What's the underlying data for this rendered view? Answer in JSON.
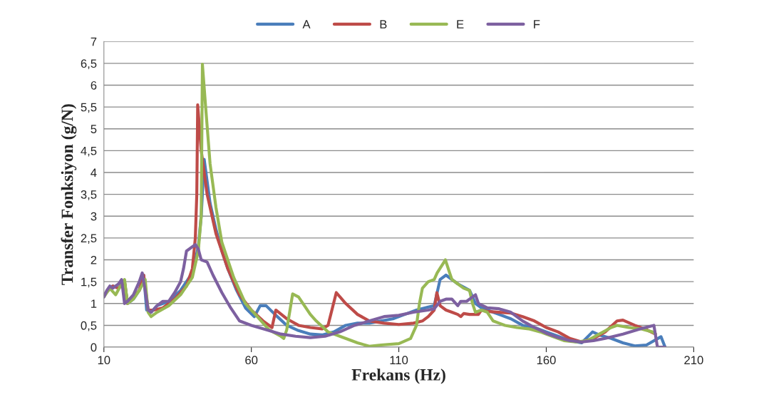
{
  "chart_data": {
    "type": "line",
    "xlabel": "Frekans (Hz)",
    "ylabel": "Transfer Fonksiyon (g/N)",
    "xlim": [
      10,
      210
    ],
    "xticks": [
      10,
      60,
      110,
      160,
      210
    ],
    "ylim": [
      0,
      7
    ],
    "yticks": [
      0,
      {
        "value": 0.5,
        "label": "0,5"
      },
      1,
      {
        "value": 1.5,
        "label": "1,5"
      },
      2,
      {
        "value": 2.5,
        "label": "2,5"
      },
      3,
      {
        "value": 3.5,
        "label": "3,5"
      },
      4,
      {
        "value": 4.5,
        "label": "4,5"
      },
      5,
      {
        "value": 5.5,
        "label": "5,5"
      },
      6,
      {
        "value": 6.5,
        "label": "6,5"
      },
      7
    ],
    "grid": "y",
    "legend": "top",
    "marker": "none",
    "line_style": "solid",
    "series": [
      {
        "name": "A",
        "color": "#4a7ebb",
        "x": [
          10,
          13,
          15,
          17,
          18,
          20,
          22,
          23.5,
          24.5,
          26,
          28,
          32,
          36,
          40,
          42,
          43,
          44,
          46,
          48,
          50,
          52,
          55,
          58,
          61,
          63,
          65,
          68,
          72,
          76,
          80,
          84,
          88,
          92,
          96,
          100,
          104,
          108,
          112,
          116,
          120,
          122,
          124,
          126,
          130,
          134,
          136,
          138,
          140,
          144,
          148,
          152,
          156,
          160,
          164,
          168,
          172,
          175.7,
          178,
          182,
          186,
          190,
          194,
          198.9,
          200.3
        ],
        "values": [
          1.2,
          1.4,
          1.35,
          1.5,
          1.0,
          1.1,
          1.3,
          1.65,
          0.85,
          0.8,
          0.95,
          1.05,
          1.3,
          1.7,
          2.3,
          3.0,
          4.3,
          3.3,
          2.7,
          2.2,
          1.8,
          1.3,
          0.9,
          0.7,
          0.95,
          0.95,
          0.75,
          0.5,
          0.38,
          0.3,
          0.28,
          0.35,
          0.5,
          0.55,
          0.55,
          0.6,
          0.65,
          0.75,
          0.85,
          0.92,
          0.95,
          1.55,
          1.65,
          1.45,
          1.3,
          1.0,
          0.9,
          0.85,
          0.75,
          0.65,
          0.5,
          0.45,
          0.35,
          0.25,
          0.15,
          0.1,
          0.35,
          0.28,
          0.2,
          0.1,
          0.03,
          0.05,
          0.24,
          0
        ]
      },
      {
        "name": "B",
        "color": "#be4b48",
        "x": [
          10,
          13,
          15,
          17,
          18,
          22,
          23.5,
          25,
          27,
          30,
          34,
          38,
          40,
          41,
          41.5,
          41.8,
          43,
          45,
          48,
          52,
          56,
          60,
          64,
          67,
          68.3,
          72,
          76,
          80,
          84,
          86,
          88.8,
          92,
          96,
          100,
          105,
          110,
          115,
          118,
          120,
          122,
          122.9,
          124,
          126,
          128,
          130,
          131,
          132,
          134,
          137,
          138,
          140,
          144,
          148,
          152,
          156,
          160,
          164,
          168,
          172,
          176,
          180,
          184,
          186,
          190,
          194,
          197
        ],
        "values": [
          1.2,
          1.4,
          1.35,
          1.5,
          1.0,
          1.3,
          1.65,
          0.85,
          0.85,
          0.9,
          1.1,
          1.4,
          1.8,
          2.5,
          3.5,
          5.55,
          4.5,
          3.5,
          2.6,
          1.8,
          1.2,
          0.85,
          0.6,
          0.45,
          0.85,
          0.65,
          0.5,
          0.45,
          0.42,
          0.5,
          1.25,
          1.0,
          0.75,
          0.6,
          0.55,
          0.52,
          0.55,
          0.6,
          0.7,
          0.85,
          1.25,
          0.95,
          0.85,
          0.8,
          0.75,
          0.7,
          0.77,
          0.75,
          0.75,
          0.85,
          0.82,
          0.8,
          0.78,
          0.7,
          0.6,
          0.45,
          0.35,
          0.2,
          0.12,
          0.2,
          0.35,
          0.6,
          0.62,
          0.5,
          0.4,
          0.3
        ]
      },
      {
        "name": "E",
        "color": "#98b954",
        "x": [
          10,
          12,
          14,
          16,
          17,
          18,
          20,
          22,
          24,
          25,
          26,
          28,
          32,
          36,
          40,
          42,
          43,
          43.4,
          44.5,
          46,
          48,
          50,
          54,
          58,
          62,
          66,
          70,
          71,
          72,
          74,
          76,
          78,
          80,
          82,
          86,
          90,
          96,
          100,
          104,
          110,
          114,
          116,
          117,
          118,
          120,
          122,
          123,
          125.8,
          127,
          128,
          130,
          132,
          134,
          135,
          136,
          138,
          140,
          142,
          144,
          146,
          150,
          154,
          158,
          162,
          166,
          170,
          174,
          178,
          182,
          184,
          188,
          192,
          196,
          197
        ],
        "values": [
          1.15,
          1.35,
          1.2,
          1.45,
          1.55,
          1.0,
          1.1,
          1.3,
          1.55,
          0.8,
          0.7,
          0.8,
          0.95,
          1.2,
          1.6,
          2.2,
          3.0,
          6.48,
          5.5,
          4.2,
          3.2,
          2.4,
          1.6,
          1.0,
          0.7,
          0.4,
          0.25,
          0.2,
          0.4,
          1.22,
          1.15,
          0.95,
          0.75,
          0.6,
          0.35,
          0.25,
          0.1,
          0.02,
          0.05,
          0.08,
          0.2,
          0.5,
          1.0,
          1.35,
          1.5,
          1.55,
          1.7,
          2.0,
          1.75,
          1.55,
          1.45,
          1.35,
          1.3,
          1.0,
          0.8,
          0.85,
          0.8,
          0.6,
          0.55,
          0.5,
          0.45,
          0.42,
          0.35,
          0.25,
          0.15,
          0.12,
          0.15,
          0.3,
          0.45,
          0.5,
          0.45,
          0.42,
          0.35,
          0.3
        ]
      },
      {
        "name": "F",
        "color": "#7d60a0",
        "x": [
          10,
          11,
          12,
          13,
          14,
          15,
          16,
          17,
          18,
          20,
          22,
          23,
          24,
          25,
          26,
          28,
          30,
          32,
          34,
          36,
          37,
          38,
          40,
          41,
          42,
          43,
          45,
          47,
          50,
          53,
          56,
          60,
          65,
          70,
          75,
          80,
          85,
          90,
          95,
          100,
          105,
          110,
          115,
          120,
          122,
          124,
          126,
          128,
          130,
          131,
          133,
          135,
          136,
          137,
          140,
          144,
          148,
          152,
          156,
          160,
          164,
          168,
          172,
          176,
          180,
          186,
          192,
          196.5,
          197.7,
          200.3
        ],
        "values": [
          1.15,
          1.3,
          1.4,
          1.35,
          1.4,
          1.45,
          1.55,
          1.0,
          1.05,
          1.2,
          1.5,
          1.7,
          1.3,
          0.85,
          0.8,
          0.95,
          1.05,
          1.05,
          1.25,
          1.5,
          1.8,
          2.2,
          2.3,
          2.35,
          2.25,
          2.0,
          1.95,
          1.65,
          1.25,
          0.9,
          0.6,
          0.5,
          0.4,
          0.3,
          0.25,
          0.22,
          0.25,
          0.35,
          0.5,
          0.6,
          0.7,
          0.73,
          0.8,
          0.85,
          0.88,
          1.05,
          1.1,
          1.1,
          0.95,
          1.05,
          1.05,
          1.15,
          1.2,
          1.0,
          0.9,
          0.88,
          0.8,
          0.6,
          0.45,
          0.32,
          0.22,
          0.15,
          0.12,
          0.15,
          0.2,
          0.3,
          0.42,
          0.5,
          0,
          0
        ]
      }
    ]
  }
}
